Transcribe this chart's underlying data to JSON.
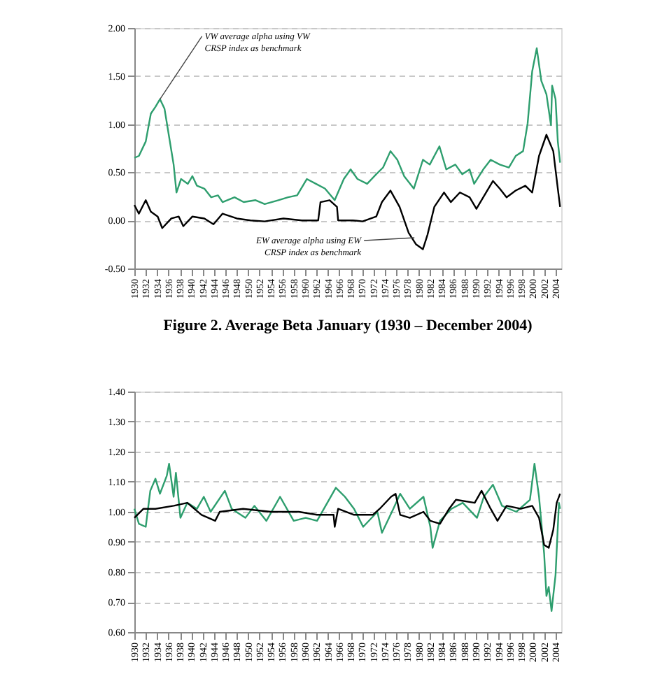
{
  "chart_data": [
    {
      "type": "line",
      "xlim": [
        1930,
        2005
      ],
      "xticks": [
        1930,
        1932,
        1934,
        1936,
        1938,
        1940,
        1942,
        1944,
        1946,
        1948,
        1950,
        1952,
        1954,
        1956,
        1958,
        1960,
        1962,
        1964,
        1966,
        1968,
        1970,
        1972,
        1974,
        1976,
        1978,
        1980,
        1982,
        1984,
        1986,
        1988,
        1990,
        1992,
        1994,
        1996,
        1998,
        2000,
        2002,
        2004
      ],
      "ylim": [
        -0.5,
        2.0
      ],
      "yticks": [
        {
          "value": -0.5,
          "label": "-0.50"
        },
        {
          "value": 0,
          "label": "0.00"
        },
        {
          "value": 0.5,
          "label": "0.50"
        },
        {
          "value": 1.0,
          "label": "1.00"
        },
        {
          "value": 1.5,
          "label": "1.50"
        },
        {
          "value": 2.0,
          "label": "2.00"
        }
      ],
      "grid": "y",
      "legend": false,
      "marker": "none",
      "line_style": "solid",
      "annotations": [
        {
          "text": "VW average alpha using VW\nCRSP index as benchmark",
          "x": 1934.5,
          "y": 1.26
        },
        {
          "text": "EW average alpha using EW\nCRSP index as benchmark",
          "x": 1979.2,
          "y": -0.18
        }
      ],
      "series": [
        {
          "color": "#2e9e6e",
          "x": [
            1930.0,
            1930.8,
            1932.0,
            1932.9,
            1933.7,
            1934.5,
            1935.3,
            1936.1,
            1936.9,
            1937.4,
            1938.2,
            1939.4,
            1940.2,
            1941.0,
            1942.3,
            1943.5,
            1944.7,
            1945.5,
            1947.6,
            1949.2,
            1951.3,
            1952.9,
            1955.3,
            1957.0,
            1958.6,
            1960.3,
            1961.9,
            1963.5,
            1965.2,
            1966.8,
            1968.0,
            1969.2,
            1970.9,
            1972.5,
            1973.7,
            1975.0,
            1976.2,
            1977.4,
            1979.1,
            1980.7,
            1981.9,
            1983.6,
            1984.8,
            1986.4,
            1987.6,
            1988.9,
            1989.7,
            1991.3,
            1992.6,
            1994.2,
            1995.8,
            1997.0,
            1998.3,
            1999.1,
            1999.9,
            2000.7,
            2001.5,
            2002.4,
            2003.2,
            2003.4,
            2004.0,
            2004.4,
            2004.8
          ],
          "values": [
            0.65,
            0.67,
            0.82,
            1.11,
            1.18,
            1.26,
            1.16,
            0.87,
            0.58,
            0.29,
            0.43,
            0.38,
            0.46,
            0.36,
            0.33,
            0.24,
            0.26,
            0.19,
            0.24,
            0.19,
            0.21,
            0.17,
            0.21,
            0.24,
            0.26,
            0.43,
            0.38,
            0.33,
            0.21,
            0.43,
            0.53,
            0.43,
            0.38,
            0.48,
            0.55,
            0.72,
            0.63,
            0.46,
            0.33,
            0.63,
            0.58,
            0.77,
            0.53,
            0.58,
            0.48,
            0.53,
            0.38,
            0.53,
            0.63,
            0.58,
            0.55,
            0.67,
            0.72,
            1.01,
            1.55,
            1.79,
            1.45,
            1.31,
            0.99,
            1.4,
            1.26,
            0.82,
            0.6
          ]
        },
        {
          "color": "#000000",
          "x": [
            1930.0,
            1930.8,
            1932.0,
            1932.9,
            1934.1,
            1934.9,
            1936.5,
            1937.8,
            1938.6,
            1940.2,
            1942.3,
            1943.9,
            1945.5,
            1948.0,
            1950.4,
            1952.9,
            1956.2,
            1959.4,
            1962.3,
            1962.7,
            1964.3,
            1965.6,
            1965.8,
            1968.4,
            1970.1,
            1972.5,
            1973.5,
            1975.0,
            1976.6,
            1978.2,
            1979.5,
            1980.7,
            1981.5,
            1982.7,
            1984.4,
            1985.6,
            1987.2,
            1988.9,
            1990.1,
            1991.3,
            1993.0,
            1994.2,
            1995.4,
            1997.0,
            1998.7,
            1999.9,
            2001.1,
            2002.4,
            2003.6,
            2004.4,
            2004.8
          ],
          "values": [
            0.16,
            0.07,
            0.21,
            0.09,
            0.04,
            -0.08,
            0.02,
            0.04,
            -0.06,
            0.04,
            0.02,
            -0.04,
            0.07,
            0.02,
            0.0,
            -0.01,
            0.02,
            0.0,
            0.0,
            0.19,
            0.21,
            0.14,
            0.0,
            0.0,
            -0.01,
            0.04,
            0.19,
            0.31,
            0.14,
            -0.13,
            -0.25,
            -0.3,
            -0.15,
            0.14,
            0.29,
            0.19,
            0.29,
            0.24,
            0.12,
            0.24,
            0.41,
            0.33,
            0.24,
            0.31,
            0.36,
            0.29,
            0.67,
            0.89,
            0.72,
            0.33,
            0.14
          ]
        }
      ]
    },
    {
      "type": "line",
      "title": "Figure 2.  Average Beta January (1930 – December 2004)",
      "xlim": [
        1930,
        2005
      ],
      "xticks": [
        1930,
        1932,
        1934,
        1936,
        1938,
        1940,
        1942,
        1944,
        1946,
        1948,
        1950,
        1952,
        1954,
        1956,
        1958,
        1960,
        1962,
        1964,
        1966,
        1968,
        1970,
        1972,
        1974,
        1976,
        1978,
        1980,
        1982,
        1984,
        1986,
        1988,
        1990,
        1992,
        1994,
        1996,
        1998,
        2000,
        2002,
        2004
      ],
      "ylim": [
        0.6,
        1.4
      ],
      "yticks": [
        {
          "value": 0.6,
          "label": "0.60"
        },
        {
          "value": 0.7,
          "label": "0.70"
        },
        {
          "value": 0.8,
          "label": "0.80"
        },
        {
          "value": 0.9,
          "label": "0.90"
        },
        {
          "value": 1.0,
          "label": "1.00"
        },
        {
          "value": 1.1,
          "label": "1.10"
        },
        {
          "value": 1.2,
          "label": "1.20"
        },
        {
          "value": 1.3,
          "label": "1.30"
        },
        {
          "value": 1.4,
          "label": "1.40"
        }
      ],
      "grid": "y",
      "legend": false,
      "marker": "none",
      "line_style": "solid",
      "series": [
        {
          "color": "#2e9e6e",
          "x": [
            1930.0,
            1930.8,
            1932.0,
            1932.8,
            1933.7,
            1934.5,
            1935.7,
            1936.1,
            1936.9,
            1937.3,
            1938.1,
            1939.3,
            1941.0,
            1942.2,
            1943.4,
            1945.9,
            1947.1,
            1949.5,
            1951.1,
            1953.2,
            1955.6,
            1958.0,
            1960.1,
            1962.1,
            1965.4,
            1967.0,
            1968.6,
            1970.2,
            1972.7,
            1973.5,
            1975.5,
            1976.7,
            1978.4,
            1980.8,
            1982.0,
            1982.4,
            1983.7,
            1985.7,
            1987.7,
            1990.2,
            1991.4,
            1993.0,
            1994.6,
            1997.1,
            1999.5,
            2000.3,
            2001.1,
            2002.0,
            2002.4,
            2002.8,
            2003.3,
            2004.0,
            2004.6,
            2004.8
          ],
          "values": [
            1.01,
            0.96,
            0.95,
            1.07,
            1.11,
            1.06,
            1.12,
            1.16,
            1.05,
            1.13,
            0.98,
            1.03,
            1.01,
            1.05,
            1.0,
            1.07,
            1.01,
            0.98,
            1.02,
            0.97,
            1.05,
            0.97,
            0.98,
            0.97,
            1.08,
            1.05,
            1.01,
            0.95,
            1.0,
            0.93,
            1.01,
            1.06,
            1.01,
            1.05,
            0.95,
            0.88,
            0.97,
            1.01,
            1.03,
            0.98,
            1.05,
            1.09,
            1.02,
            1.0,
            1.04,
            1.16,
            1.05,
            0.86,
            0.72,
            0.75,
            0.67,
            0.79,
            1.03,
            1.01
          ]
        },
        {
          "color": "#000000",
          "x": [
            1930.0,
            1931.6,
            1933.7,
            1936.9,
            1939.3,
            1941.8,
            1944.2,
            1945.0,
            1949.1,
            1954.0,
            1958.9,
            1962.1,
            1965.0,
            1965.2,
            1965.8,
            1968.6,
            1971.9,
            1973.1,
            1975.1,
            1975.9,
            1976.7,
            1978.4,
            1980.8,
            1982.0,
            1983.7,
            1985.3,
            1986.5,
            1989.8,
            1991.0,
            1992.6,
            1993.8,
            1995.4,
            1997.9,
            1999.9,
            2001.1,
            2002.0,
            2002.8,
            2003.6,
            2004.2,
            2004.8
          ],
          "values": [
            0.98,
            1.01,
            1.01,
            1.02,
            1.03,
            0.99,
            0.97,
            1.0,
            1.01,
            1.0,
            1.0,
            0.99,
            0.99,
            0.95,
            1.01,
            0.99,
            0.99,
            1.01,
            1.05,
            1.06,
            0.99,
            0.98,
            1.0,
            0.97,
            0.96,
            1.01,
            1.04,
            1.03,
            1.07,
            1.01,
            0.97,
            1.02,
            1.01,
            1.02,
            0.98,
            0.89,
            0.88,
            0.94,
            1.03,
            1.06
          ]
        }
      ]
    }
  ]
}
